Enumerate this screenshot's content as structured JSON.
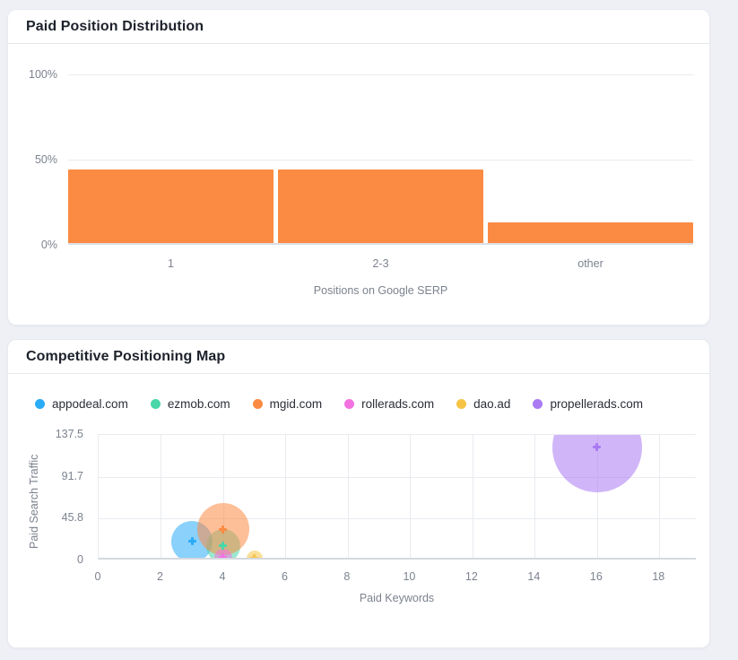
{
  "page": {
    "background": "#eef0f6"
  },
  "chart_data": [
    {
      "type": "bar",
      "title": "Paid Position Distribution",
      "categories": [
        "1",
        "2-3",
        "other"
      ],
      "values": [
        43,
        43,
        12
      ],
      "value_unit": "%",
      "bar_color": "#fb8b43",
      "xlabel": "Positions on Google SERP",
      "ylabel": "",
      "yticks": [
        {
          "value": 0,
          "label": "0%"
        },
        {
          "value": 50,
          "label": "50%"
        },
        {
          "value": 100,
          "label": "100%"
        }
      ],
      "ylim": [
        0,
        100
      ],
      "grid": "horizontal",
      "legend_position": "none"
    },
    {
      "type": "scatter",
      "title": "Competitive Positioning Map",
      "xlabel": "Paid Keywords",
      "ylabel": "Paid Search Traffic",
      "xlim": [
        0,
        19.2
      ],
      "ylim": [
        0,
        137.5
      ],
      "xticks": [
        0,
        2,
        4,
        6,
        8,
        10,
        12,
        14,
        16,
        18
      ],
      "yticks": [
        0,
        45.8,
        91.7,
        137.5
      ],
      "grid": "both",
      "legend_position": "top",
      "bubble_fill_alpha": 0.55,
      "series": [
        {
          "name": "appodeal.com",
          "color": "#2aabf7",
          "x": 3,
          "y": 21,
          "radius_px": 23
        },
        {
          "name": "ezmob.com",
          "color": "#49d6a8",
          "x": 4,
          "y": 16,
          "radius_px": 19
        },
        {
          "name": "mgid.com",
          "color": "#fb8b43",
          "x": 4,
          "y": 34,
          "radius_px": 29
        },
        {
          "name": "rollerads.com",
          "color": "#f272e1",
          "x": 4,
          "y": 3,
          "radius_px": 10
        },
        {
          "name": "dao.ad",
          "color": "#f6c344",
          "x": 5,
          "y": 2,
          "radius_px": 9
        },
        {
          "name": "propellerads.com",
          "color": "#a97af2",
          "x": 16,
          "y": 124,
          "radius_px": 50
        }
      ]
    }
  ]
}
